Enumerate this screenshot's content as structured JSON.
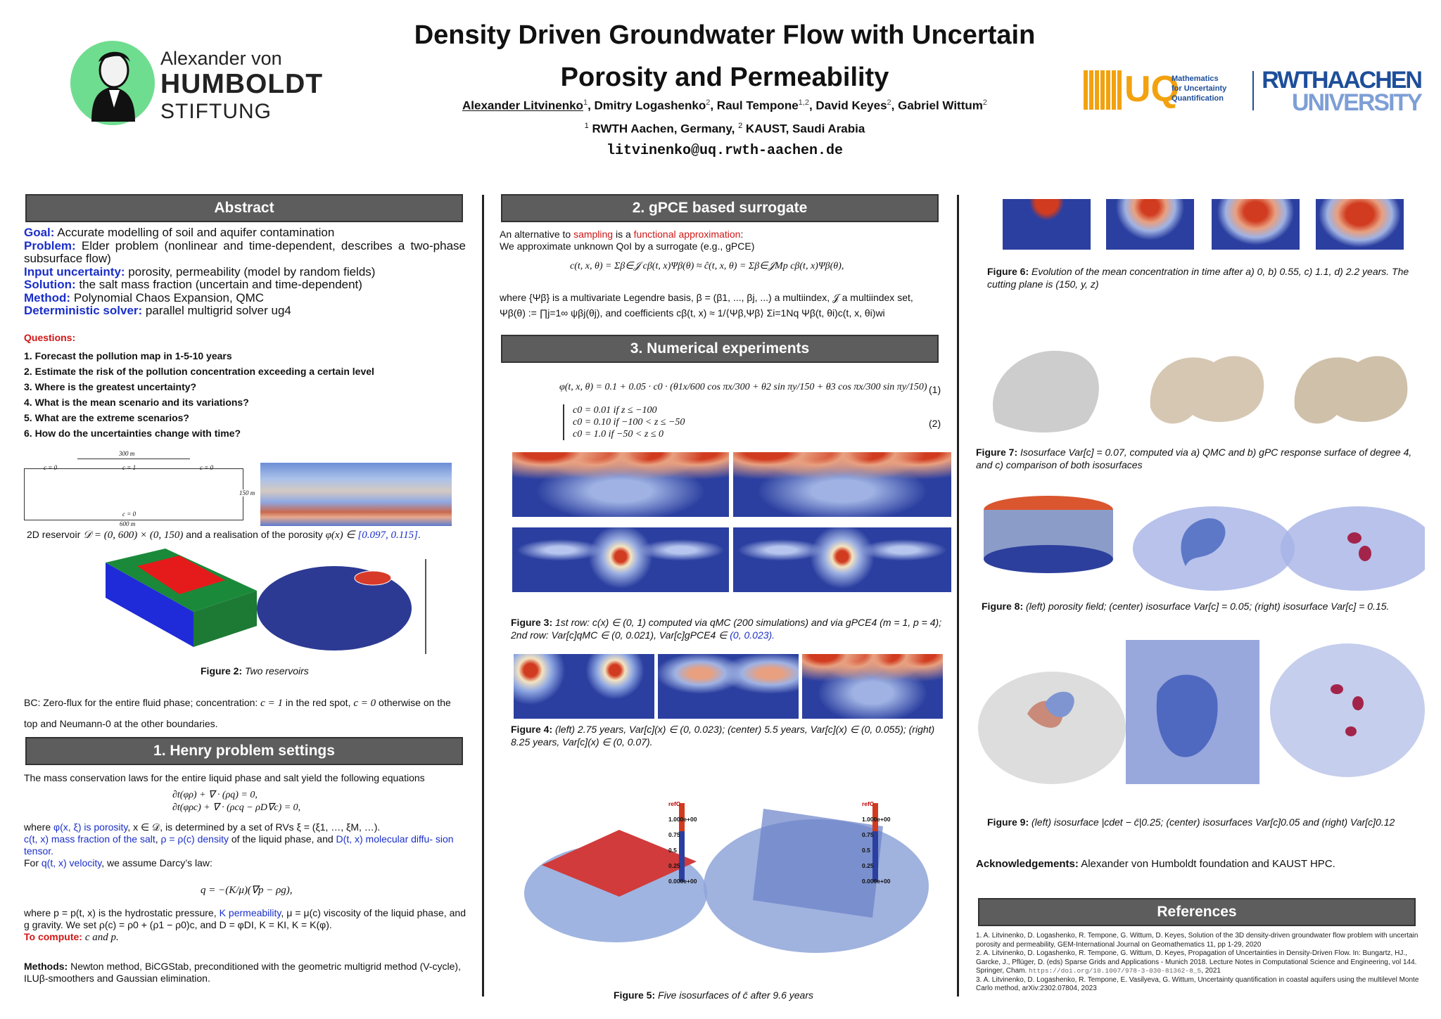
{
  "header": {
    "title_line1": "Density Driven Groundwater Flow with Uncertain",
    "title_line2": "Porosity and Permeability",
    "authors": [
      {
        "name": "Alexander Litvinenko",
        "sup": "1"
      },
      {
        "name": "Dmitry Logashenko",
        "sup": "2"
      },
      {
        "name": "Raul Tempone",
        "sup": "1,2"
      },
      {
        "name": "David Keyes",
        "sup": "2"
      },
      {
        "name": "Gabriel Wittum",
        "sup": "2"
      }
    ],
    "affil_sup1": "1",
    "affil1": "RWTH Aachen, Germany,",
    "affil_sup2": "2",
    "affil2": "KAUST, Saudi Arabia",
    "email": "litvinenko@uq.rwth-aachen.de"
  },
  "logos": {
    "humboldt_line1": "Alexander von",
    "humboldt_line2": "HUMBOLDT",
    "humboldt_line3": "STIFTUNG",
    "uq_text": "UQ",
    "uq_sub1": "Mathematics",
    "uq_sub2": "for Uncertainty",
    "uq_sub3": "Quantification",
    "rwth_line1": "RWTHAACHEN",
    "rwth_line2": "UNIVERSITY"
  },
  "abstract": {
    "header": "Abstract",
    "goal_label": "Goal:",
    "goal": "Accurate modelling of soil and aquifer contamination",
    "problem_label": "Problem:",
    "problem": "Elder problem (nonlinear and time-dependent, describes a two-phase subsurface flow)",
    "input_label": "Input uncertainty:",
    "input": "porosity, permeability (model by random fields)",
    "solution_label": "Solution:",
    "solution": "the salt mass fraction (uncertain and time-dependent)",
    "method_label": "Method:",
    "method": "Polynomial Chaos Expansion, QMC",
    "solver_label": "Deterministic solver:",
    "solver": "parallel multigrid solver ug4",
    "questions_label": "Questions:",
    "questions": [
      "1. Forecast the pollution map in 1-5-10 years",
      "2. Estimate the risk of the pollution concentration exceeding a certain level",
      "3. Where is the greatest uncertainty?",
      "4. What is the mean scenario and its variations?",
      "5. What are the extreme scenarios?",
      "6. How do the uncertainties change with time?"
    ],
    "reservoir_caption_a": "2D reservoir",
    "reservoir_caption_b": "and a realisation of the porosity",
    "reservoir_caption_math1": "𝒟 = (0, 600) × (0, 150)",
    "reservoir_caption_math2": "φ(x) ∈",
    "reservoir_caption_range": "[0.097, 0.115]",
    "diag_labels": {
      "top": "300 m",
      "c0a": "c = 0",
      "c1": "c = 1",
      "c0b": "c = 0",
      "height": "150 m",
      "bottom_c0": "c = 0",
      "width": "600 m"
    },
    "fig2_label": "Figure 2:",
    "fig2_caption": "Two reservoirs",
    "bc_text_a": "BC: Zero-flux for the entire fluid phase; concentration:",
    "bc_math1": "c = 1",
    "bc_text_b": "in the red spot,",
    "bc_math2": "c = 0",
    "bc_text_c": "otherwise on the top and Neumann-0 at the other boundaries."
  },
  "henry": {
    "header": "1. Henry problem settings",
    "intro": "The mass conservation laws for the entire liquid phase and salt yield the following equations",
    "eq1": "∂t(φρ) + ∇ · (ρq) = 0,",
    "eq2": "∂t(φρc) + ∇ · (ρcq − ρD∇c) = 0,",
    "where1_a": "where",
    "phi": "φ(x, ξ) is porosity",
    "where1_b": ", x ∈ 𝒟, is determined by a set of RVs ξ = (ξ1, …, ξM, …).",
    "cmass": "c(t, x) mass fraction of the salt",
    "rho": "ρ = ρ(c) density",
    "rho_tail": "of the liquid phase, and",
    "diff": "D(t, x) molecular diffu- sion tensor.",
    "darcy_a": "For",
    "darcy_q": "q(t, x) velocity",
    "darcy_b": ", we assume Darcy’s law:",
    "darcy_eq": "q = −(K/μ)(∇p − ρg),",
    "where2_a": "where p = p(t, x) is the hydrostatic pressure,",
    "perm": "K permeability",
    "where2_b": ", μ = μ(c) viscosity of the liquid phase, and g gravity. We set ρ(c) = ρ0 + (ρ1 − ρ0)c, and D = φDI, K = KI, K = K(φ).",
    "compute_label": "To compute:",
    "compute": "c and p.",
    "methods_label": "Methods:",
    "methods": "Newton method, BiCGStab, preconditioned with the geometric multigrid method (V-cycle), ILUβ-smoothers and Gaussian elimination."
  },
  "gpce": {
    "header": "2. gPCE based surrogate",
    "l1_a": "An alternative to",
    "l1_sampling": "sampling",
    "l1_b": "is a",
    "l1_func": "functional approximation",
    "l1_c": ":",
    "l2": "We approximate unknown QoI by a surrogate (e.g., gPCE)",
    "eq": "c(t, x, θ) = Σβ∈𝒥 cβ(t, x)Ψβ(θ) ≈ ĉ(t, x, θ) = Σβ∈𝒥Mp cβ(t, x)Ψβ(θ),",
    "l3": "where {Ψβ} is a multivariate Legendre basis, β = (β1, ..., βj, ...) a multiindex, 𝒥 a multiindex set,",
    "l4": "Ψβ(θ) := ∏j=1∞ ψβj(θj), and coefficients cβ(t, x) ≈ 1/⟨Ψβ,Ψβ⟩ Σi=1Nq Ψβ(t, θi)c(t, x, θi)wi"
  },
  "numerical": {
    "header": "3. Numerical experiments",
    "eq1": "φ(t, x, θ) = 0.1 + 0.05 · c0 · (θ1x/600 cos πx/300 + θ2 sin πy/150 + θ3 cos πx/300 sin πy/150)",
    "eq1_num": "(1)",
    "eq2_lines": [
      "c0 = 0.01      if z ≤ −100",
      "c0 = 0.10      if −100 < z ≤ −50",
      "c0 = 1.0        if −50 < z ≤ 0"
    ],
    "eq2_num": "(2)",
    "fig3_label": "Figure 3:",
    "fig3_caption": "1st row: c(x) ∈ (0, 1) computed via qMC (200 simulations) and via gPCE4 (m = 1, p = 4); 2nd row: Var[c]qMC ∈ (0, 0.021), Var[c]gPCE4 ∈",
    "fig3_range": "(0, 0.023).",
    "fig4_label": "Figure 4:",
    "fig4_caption": "(left) 2.75 years, Var[c](x) ∈ (0, 0.023); (center) 5.5 years, Var[c](x) ∈ (0, 0.055); (right) 8.25 years, Var[c](x) ∈ (0, 0.07).",
    "legend_title": "refC",
    "legend_ticks": [
      "1.000e+00",
      "0.75",
      "0.5",
      "0.25",
      "0.000e+00"
    ],
    "fig5_label": "Figure 5:",
    "fig5_caption": "Five isosurfaces of c̄ after 9.6 years"
  },
  "right": {
    "fig6_label": "Figure 6:",
    "fig6_caption": "Evolution of the mean concentration in time after a) 0, b) 0.55, c) 1.1, d) 2.2 years. The cutting plane is (150, y, z)",
    "fig7_label": "Figure 7:",
    "fig7_caption": "Isosurface Var[c] = 0.07, computed via a) QMC and b) gPC response surface of degree 4, and c) comparison of both isosurfaces",
    "fig8_label": "Figure 8:",
    "fig8_caption": "(left) porosity field; (center) isosurface Var[c] = 0.05; (right) isosurface Var[c] = 0.15.",
    "fig9_label": "Figure 9:",
    "fig9_caption": "(left) isosurface |cdet − c̄|0.25; (center) isosurfaces Var[c]0.05 and (right) Var[c]0.12",
    "ack_label": "Acknowledgements:",
    "ack": "Alexander von Humboldt foundation and KAUST HPC.",
    "refs_header": "References",
    "refs": [
      "1. A. Litvinenko, D. Logashenko, R. Tempone, G. Wittum, D. Keyes, Solution of the 3D density-driven groundwater flow problem with uncertain porosity and permeability, GEM-International Journal on Geomathematics 11, pp 1-29, 2020",
      "2. A. Litvinenko, D. Logashenko, R. Tempone, G. Wittum, D. Keyes, Propagation of Uncertainties in Density-Driven Flow. In: Bungartz, HJ., Garcke, J., Pflüger, D. (eds) Sparse Grids and Applications - Munich 2018. Lecture Notes in Computational Science and Engineering, vol 144. Springer, Cham.",
      "https://doi.org/10.1007/978-3-030-81362-8_5",
      ", 2021",
      "3. A. Litvinenko, D. Logashenko, R. Tempone, E. Vasilyeva, G. Wittum, Uncertainty quantification in coastal aquifers using the multilevel Monte Carlo method, arXiv:2302.07804, 2023"
    ]
  },
  "colors": {
    "header_bg": "#5d5d5d",
    "label_blue": "#1a2fc9",
    "accent_red": "#d01616",
    "field_blue": "#2b3fa0"
  }
}
